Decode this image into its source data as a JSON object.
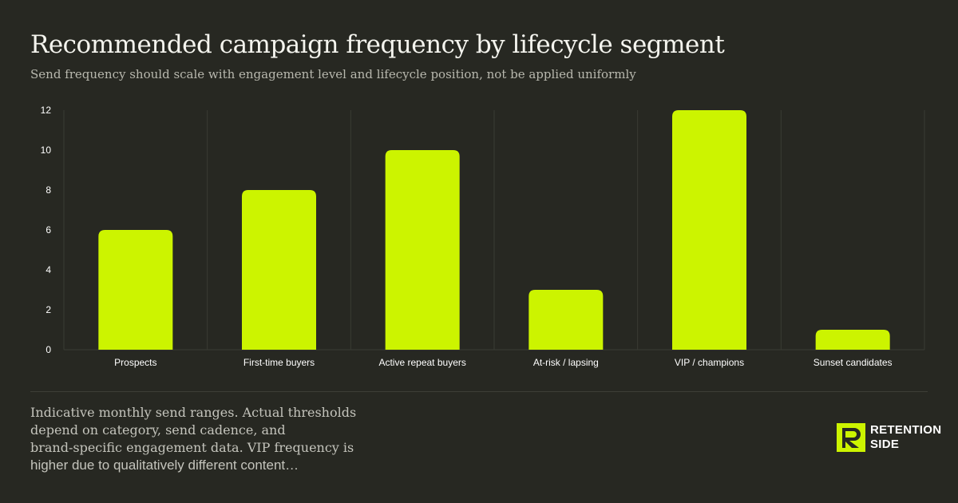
{
  "header": {
    "title": "Recommended campaign frequency by lifecycle segment",
    "subtitle": "Send frequency should scale with engagement level and lifecycle position, not be applied uniformly"
  },
  "footnote": {
    "lines": [
      "Indicative monthly send ranges. Actual thresholds",
      "depend on category, send cadence, and",
      "brand-specific engagement data. VIP frequency is",
      "higher due to qualitatively different content…"
    ]
  },
  "brand": {
    "line1": "RETENTION",
    "line2": "SIDE",
    "icon": "retention-side-logo-icon",
    "accent": "#ccf400"
  },
  "colors": {
    "background": "#272822",
    "bar": "#ccf400",
    "grid": "#3a3b34",
    "tick_text": "#ffffff"
  },
  "chart_data": {
    "type": "bar",
    "categories": [
      "Prospects",
      "First-time buyers",
      "Active repeat buyers",
      "At-risk / lapsing",
      "VIP / champions",
      "Sunset candidates"
    ],
    "values": [
      6,
      8,
      10,
      3,
      12,
      1
    ],
    "title": "",
    "xlabel": "",
    "ylabel": "",
    "ylim": [
      0,
      12
    ],
    "yticks": [
      "0",
      "2",
      "4",
      "6",
      "8",
      "10",
      "12"
    ],
    "grid": "vertical category separators",
    "legend": "none"
  }
}
